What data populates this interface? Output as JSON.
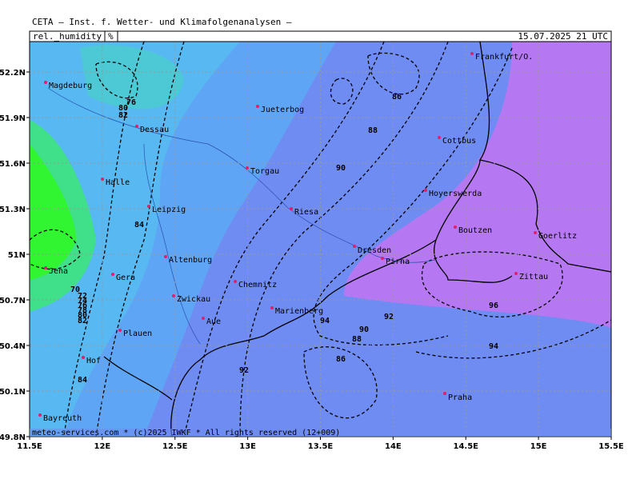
{
  "header": {
    "title": "CETA — Inst. f. Wetter- und Klimafolgenanalysen —",
    "parameter": "rel._humidity",
    "unit": "%",
    "valid_time": "15.07.2025 21 UTC"
  },
  "map": {
    "lon_ticks": [
      {
        "value": 11.5,
        "label": "11.5E"
      },
      {
        "value": 12,
        "label": "12E"
      },
      {
        "value": 12.5,
        "label": "12.5E"
      },
      {
        "value": 13,
        "label": "13E"
      },
      {
        "value": 13.5,
        "label": "13.5E"
      },
      {
        "value": 14,
        "label": "14E"
      },
      {
        "value": 14.5,
        "label": "14.5E"
      },
      {
        "value": 15,
        "label": "15E"
      },
      {
        "value": 15.5,
        "label": "15.5E"
      }
    ],
    "lat_ticks": [
      {
        "value": 49.8,
        "label": "49.8N"
      },
      {
        "value": 50.1,
        "label": "50.1N"
      },
      {
        "value": 50.4,
        "label": "50.4N"
      },
      {
        "value": 50.7,
        "label": "50.7N"
      },
      {
        "value": 51,
        "label": "51N"
      },
      {
        "value": 51.3,
        "label": "51.3N"
      },
      {
        "value": 51.6,
        "label": "51.6N"
      },
      {
        "value": 51.9,
        "label": "51.9N"
      },
      {
        "value": 52.2,
        "label": "52.2N"
      }
    ],
    "cities": [
      "Magdeburg",
      "Jueterbog",
      "Dessau",
      "Torgau",
      "Halle",
      "Leipzig",
      "Riesa",
      "Cottbus",
      "Hoyerswerda",
      "Boutzen",
      "Goerlitz",
      "Dresden",
      "Pirna",
      "Altenburg",
      "Gera",
      "Jena",
      "Chemnitz",
      "Zwickau",
      "Aue",
      "Marienberg",
      "Plauen",
      "Hof",
      "Bayreuth",
      "Praha",
      "Frankfurt/O.",
      "Zittau"
    ],
    "contour_labels": [
      "86",
      "88",
      "90",
      "84",
      "76",
      "80",
      "82",
      "70",
      "72",
      "74",
      "76",
      "78",
      "80",
      "82",
      "84",
      "92",
      "94",
      "90",
      "88",
      "92",
      "86",
      "96",
      "94"
    ]
  },
  "footer": {
    "text": "meteo-services.com * (c)2025 IWKF * All rights reserved (12+009)"
  }
}
